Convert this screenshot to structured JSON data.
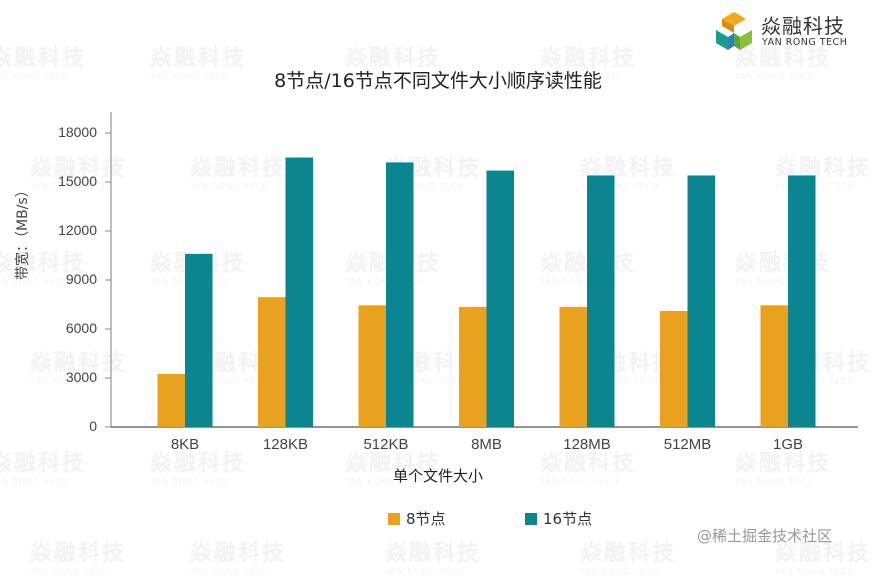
{
  "brand": {
    "name_cn": "焱融科技",
    "name_en": "YAN RONG TECH",
    "colors": [
      "#f0a91f",
      "#1a9c8c",
      "#2a7fc1",
      "#8bbf3d"
    ]
  },
  "watermark_text": "焱融科技",
  "watermark_sub": "YAN RONG TECH",
  "credit": "@稀土掘金技术社区",
  "colors": {
    "series_8": "#e9a21f",
    "series_16": "#0b8690",
    "axis": "#555555"
  },
  "chart_data": {
    "type": "bar",
    "title": "8节点/16节点不同文件大小顺序读性能",
    "xlabel": "单个文件大小",
    "ylabel": "带宽：（MB/s）",
    "categories": [
      "8KB",
      "128KB",
      "512KB",
      "8MB",
      "128MB",
      "512MB",
      "1GB"
    ],
    "series": [
      {
        "name": "8节点",
        "color": "#e9a21f",
        "values": [
          3250,
          7950,
          7450,
          7350,
          7350,
          7100,
          7450
        ]
      },
      {
        "name": "16节点",
        "color": "#0b8690",
        "values": [
          10600,
          16500,
          16200,
          15700,
          15400,
          15400,
          15400
        ]
      }
    ],
    "yticks": [
      0,
      3000,
      6000,
      9000,
      12000,
      15000,
      18000
    ],
    "ylim": [
      0,
      18000
    ],
    "grid": false,
    "legend_position": "bottom"
  }
}
